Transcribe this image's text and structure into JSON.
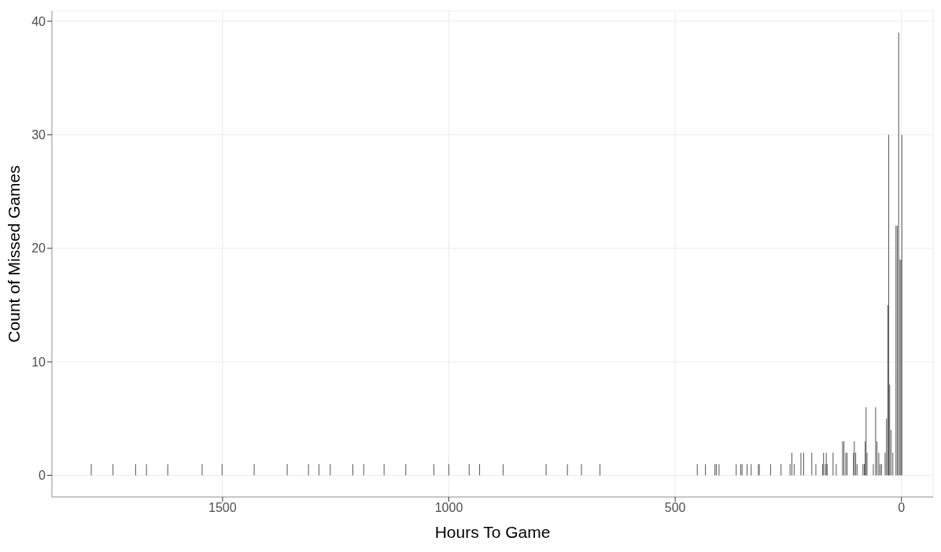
{
  "chart_data": {
    "type": "bar",
    "xlabel": "Hours To Game",
    "ylabel": "Count of Missed Games",
    "x": [
      1790,
      1742,
      1692,
      1668,
      1621,
      1545,
      1501,
      1430,
      1357,
      1310,
      1287,
      1262,
      1212,
      1188,
      1143,
      1095,
      1033,
      1000,
      955,
      932,
      880,
      785,
      738,
      707,
      666,
      451,
      433,
      412,
      409,
      403,
      365,
      355,
      352,
      341,
      332,
      316,
      314,
      289,
      266,
      246,
      242,
      237,
      222,
      216,
      198,
      189,
      174,
      172,
      168,
      166,
      164,
      151,
      144,
      130,
      127,
      123,
      120,
      106,
      104,
      101,
      98,
      85,
      82,
      80,
      78,
      76,
      62,
      57,
      54,
      50,
      47,
      44,
      36,
      33,
      30,
      28,
      26,
      23,
      19,
      12,
      9,
      6,
      3,
      1,
      -1
    ],
    "values": [
      1,
      1,
      1,
      1,
      1,
      1,
      1,
      1,
      1,
      1,
      1,
      1,
      1,
      1,
      1,
      1,
      1,
      1,
      1,
      1,
      1,
      1,
      1,
      1,
      1,
      1,
      1,
      1,
      1,
      1,
      1,
      1,
      1,
      1,
      1,
      1,
      1,
      1,
      1,
      1,
      2,
      1,
      2,
      2,
      2,
      1,
      1,
      2,
      1,
      2,
      1,
      2,
      1,
      3,
      3,
      2,
      2,
      2,
      3,
      2,
      1,
      1,
      1,
      3,
      6,
      2,
      1,
      6,
      3,
      2,
      1,
      1,
      2,
      5,
      15,
      30,
      8,
      4,
      2,
      22,
      22,
      39,
      19,
      19,
      30
    ],
    "color": "#595959",
    "xlim": [
      1877,
      -70
    ],
    "xticks": [
      1500,
      1000,
      500,
      0
    ],
    "ylim": [
      -1.9,
      40.9
    ],
    "yticks": [
      0,
      10,
      20,
      30,
      40
    ],
    "grid": true
  }
}
